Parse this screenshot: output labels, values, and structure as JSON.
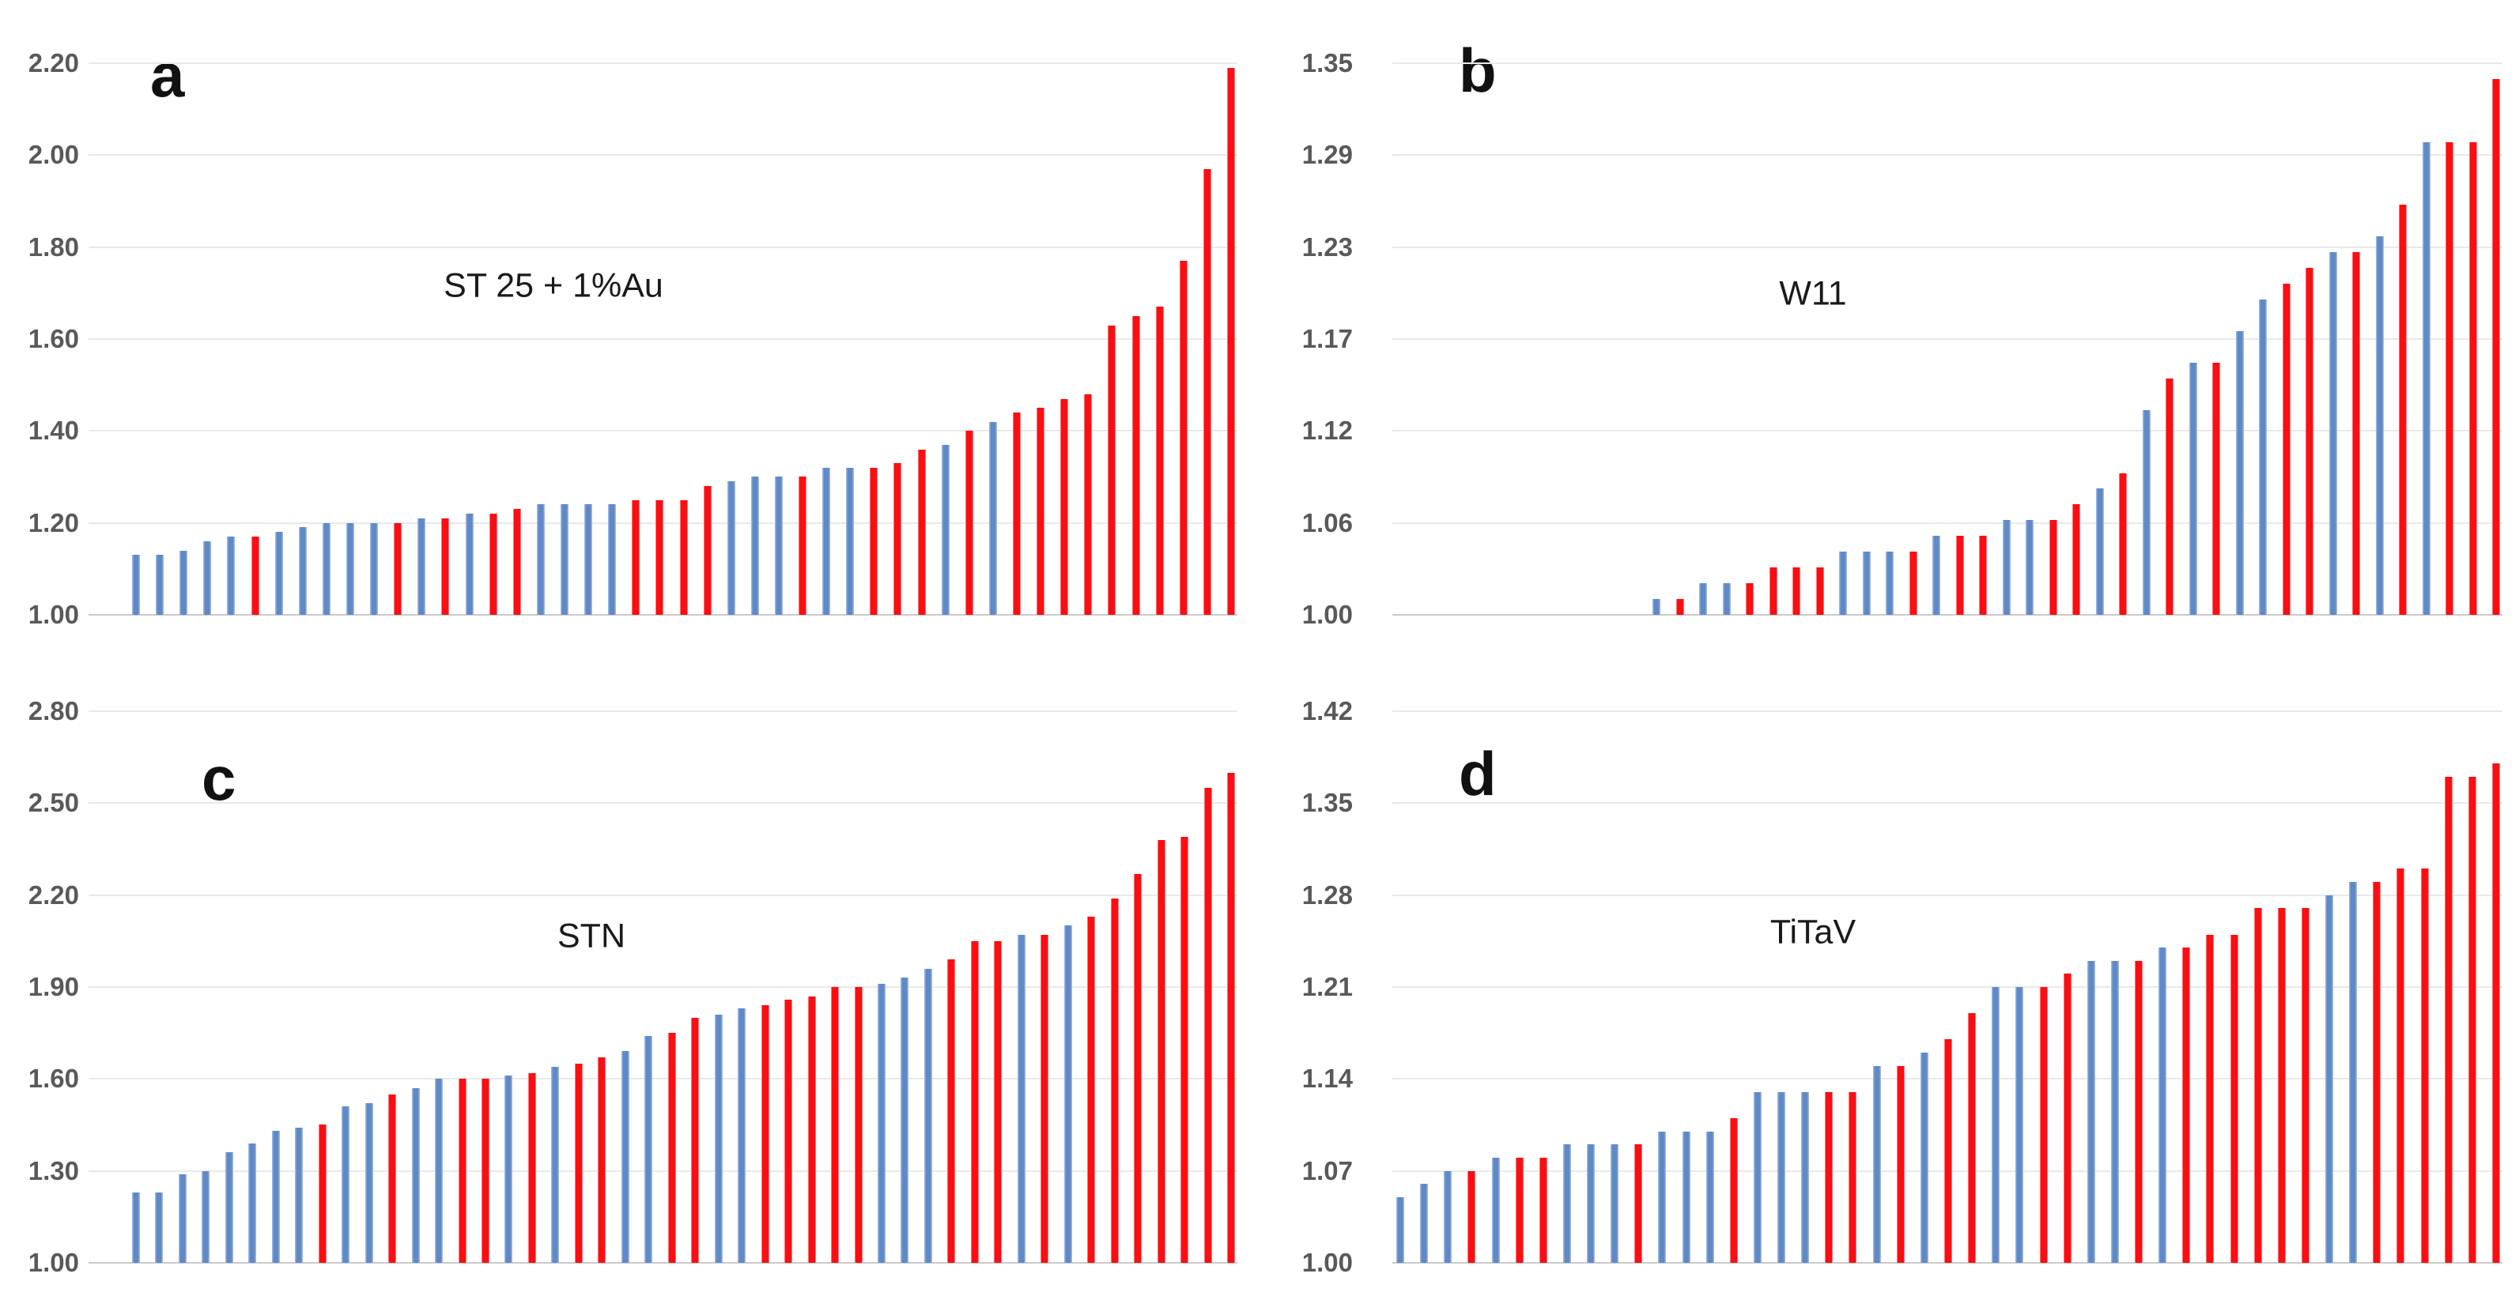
{
  "figure": {
    "background": "#ffffff",
    "description_colors": {
      "bar_blue": "#5f89c7",
      "bar_red": "#fa0e12",
      "tick_text": "#595959",
      "gridline": "#e9e9e9",
      "axis_line": "#c9c9c9",
      "panel_letter": "#111111",
      "title_text": "#1a1a1a"
    }
  },
  "chart_data": [
    {
      "type": "bar",
      "panel": "a",
      "title": "ST 25 + 1%Au",
      "ylim": [
        1.0,
        2.2
      ],
      "y_ticks": [
        "2.20",
        "2.00",
        "1.80",
        "1.60",
        "1.40",
        "1.20",
        "1.00"
      ],
      "grid": true,
      "legend": "none",
      "sorted": "ascending",
      "lead_empty_slots": 0,
      "title_pos": {
        "x": 700,
        "y": 362
      },
      "values": [
        1.13,
        1.13,
        1.14,
        1.16,
        1.17,
        1.17,
        1.18,
        1.19,
        1.2,
        1.2,
        1.2,
        1.2,
        1.21,
        1.21,
        1.22,
        1.22,
        1.23,
        1.24,
        1.24,
        1.24,
        1.24,
        1.25,
        1.25,
        1.25,
        1.28,
        1.29,
        1.3,
        1.3,
        1.3,
        1.32,
        1.32,
        1.32,
        1.33,
        1.36,
        1.37,
        1.4,
        1.42,
        1.44,
        1.45,
        1.47,
        1.48,
        1.63,
        1.65,
        1.67,
        1.77,
        1.97,
        2.19
      ],
      "bar_colors": [
        "B",
        "B",
        "B",
        "B",
        "B",
        "R",
        "B",
        "B",
        "B",
        "B",
        "B",
        "R",
        "B",
        "R",
        "B",
        "R",
        "R",
        "B",
        "B",
        "B",
        "B",
        "R",
        "R",
        "R",
        "R",
        "B",
        "B",
        "B",
        "R",
        "B",
        "B",
        "R",
        "R",
        "R",
        "B",
        "R",
        "B",
        "R",
        "R",
        "R",
        "R",
        "R",
        "R",
        "R",
        "R",
        "R",
        "R"
      ]
    },
    {
      "type": "bar",
      "panel": "b",
      "title": "W11",
      "ylim": [
        1.0,
        1.35
      ],
      "y_ticks": [
        "1.35",
        "1.29",
        "1.23",
        "1.17",
        "1.12",
        "1.06",
        "1.00"
      ],
      "grid": true,
      "legend": "none",
      "sorted": "ascending",
      "lead_empty_slots": 11,
      "title_pos": {
        "x": 700,
        "y": 372
      },
      "values": [
        1.01,
        1.01,
        1.02,
        1.02,
        1.02,
        1.03,
        1.03,
        1.03,
        1.04,
        1.04,
        1.04,
        1.04,
        1.05,
        1.05,
        1.05,
        1.06,
        1.06,
        1.06,
        1.07,
        1.08,
        1.09,
        1.13,
        1.15,
        1.16,
        1.16,
        1.18,
        1.2,
        1.21,
        1.22,
        1.23,
        1.23,
        1.24,
        1.26,
        1.3,
        1.3,
        1.3,
        1.34
      ],
      "bar_colors": [
        "B",
        "R",
        "B",
        "B",
        "R",
        "R",
        "R",
        "R",
        "B",
        "B",
        "B",
        "R",
        "B",
        "R",
        "R",
        "B",
        "B",
        "R",
        "R",
        "B",
        "R",
        "B",
        "R",
        "B",
        "R",
        "B",
        "B",
        "R",
        "R",
        "B",
        "R",
        "B",
        "R",
        "B",
        "R",
        "R",
        "R"
      ]
    },
    {
      "type": "bar",
      "panel": "c",
      "title": "STN",
      "ylim": [
        1.0,
        2.8
      ],
      "y_ticks": [
        "2.80",
        "2.50",
        "2.20",
        "1.90",
        "1.60",
        "1.30",
        "1.00"
      ],
      "grid": true,
      "legend": "none",
      "sorted": "ascending",
      "lead_empty_slots": 0,
      "title_pos": {
        "x": 748,
        "y": 365
      },
      "values": [
        1.23,
        1.23,
        1.29,
        1.3,
        1.36,
        1.39,
        1.43,
        1.44,
        1.45,
        1.51,
        1.52,
        1.55,
        1.57,
        1.6,
        1.6,
        1.6,
        1.61,
        1.62,
        1.64,
        1.65,
        1.67,
        1.69,
        1.74,
        1.75,
        1.8,
        1.81,
        1.83,
        1.84,
        1.86,
        1.87,
        1.9,
        1.9,
        1.91,
        1.93,
        1.96,
        1.99,
        2.05,
        2.05,
        2.07,
        2.07,
        2.1,
        2.13,
        2.19,
        2.27,
        2.38,
        2.39,
        2.55,
        2.6
      ],
      "bar_colors": [
        "B",
        "B",
        "B",
        "B",
        "B",
        "B",
        "B",
        "B",
        "R",
        "B",
        "B",
        "R",
        "B",
        "B",
        "R",
        "R",
        "B",
        "R",
        "B",
        "R",
        "R",
        "B",
        "B",
        "R",
        "R",
        "B",
        "B",
        "R",
        "R",
        "R",
        "R",
        "R",
        "B",
        "B",
        "B",
        "R",
        "R",
        "R",
        "B",
        "R",
        "B",
        "R",
        "R",
        "R",
        "R",
        "R",
        "R",
        "R"
      ]
    },
    {
      "type": "bar",
      "panel": "d",
      "title": "TiTaV",
      "ylim": [
        1.0,
        1.42
      ],
      "y_ticks": [
        "1.42",
        "1.35",
        "1.28",
        "1.21",
        "1.14",
        "1.07",
        "1.00"
      ],
      "grid": true,
      "legend": "none",
      "sorted": "ascending",
      "lead_empty_slots": 0,
      "title_pos": {
        "x": 700,
        "y": 360
      },
      "values": [
        1.05,
        1.06,
        1.07,
        1.07,
        1.08,
        1.08,
        1.08,
        1.09,
        1.09,
        1.09,
        1.09,
        1.1,
        1.1,
        1.1,
        1.11,
        1.13,
        1.13,
        1.13,
        1.13,
        1.13,
        1.15,
        1.15,
        1.16,
        1.17,
        1.19,
        1.21,
        1.21,
        1.21,
        1.22,
        1.23,
        1.23,
        1.23,
        1.24,
        1.24,
        1.25,
        1.25,
        1.27,
        1.27,
        1.27,
        1.28,
        1.29,
        1.29,
        1.3,
        1.3,
        1.37,
        1.37,
        1.38
      ],
      "bar_colors": [
        "B",
        "B",
        "B",
        "R",
        "B",
        "R",
        "R",
        "B",
        "B",
        "B",
        "R",
        "B",
        "B",
        "B",
        "R",
        "B",
        "B",
        "B",
        "R",
        "R",
        "B",
        "R",
        "B",
        "R",
        "R",
        "B",
        "B",
        "R",
        "R",
        "B",
        "B",
        "R",
        "B",
        "R",
        "R",
        "R",
        "R",
        "R",
        "R",
        "B",
        "B",
        "R",
        "R",
        "R",
        "R",
        "R",
        "R"
      ]
    }
  ]
}
